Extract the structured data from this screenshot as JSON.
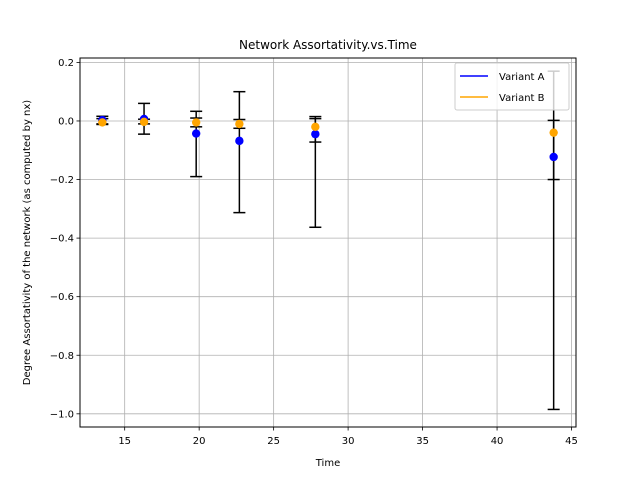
{
  "chart_data": {
    "type": "scatter",
    "title": "Network Assortativity.vs.Time",
    "xlabel": "Time",
    "ylabel": "Degree Assortativity of the network (as computed by nx)",
    "xlim": [
      12.0,
      45.3
    ],
    "ylim": [
      -1.045,
      0.215
    ],
    "xticks": [
      15,
      20,
      25,
      30,
      35,
      40,
      45
    ],
    "yticks": [
      -1.0,
      -0.8,
      -0.6,
      -0.4,
      -0.2,
      0.0,
      0.2
    ],
    "ytick_labels": [
      "−1.0",
      "−0.8",
      "−0.6",
      "−0.4",
      "−0.2",
      "0.0",
      "0.2"
    ],
    "grid": true,
    "legend_position": "top-right",
    "series": [
      {
        "name": "Variant A",
        "color": "#0000ff",
        "points": [
          {
            "x": 13.5,
            "y": 0.003,
            "ylow": -0.01,
            "yhigh": 0.016
          },
          {
            "x": 16.3,
            "y": 0.007,
            "ylow": -0.045,
            "yhigh": 0.06
          },
          {
            "x": 19.8,
            "y": -0.043,
            "ylow": -0.19,
            "yhigh": 0.033
          },
          {
            "x": 22.7,
            "y": -0.068,
            "ylow": -0.313,
            "yhigh": 0.1
          },
          {
            "x": 27.8,
            "y": -0.045,
            "ylow": -0.363,
            "yhigh": 0.015
          },
          {
            "x": 43.8,
            "y": -0.123,
            "ylow": -0.985,
            "yhigh": 0.002
          }
        ]
      },
      {
        "name": "Variant B",
        "color": "#ffa500",
        "points": [
          {
            "x": 13.5,
            "y": -0.005,
            "ylow": -0.012,
            "yhigh": 0.008
          },
          {
            "x": 16.3,
            "y": -0.003,
            "ylow": -0.01,
            "yhigh": 0.006
          },
          {
            "x": 19.8,
            "y": -0.005,
            "ylow": -0.02,
            "yhigh": 0.01
          },
          {
            "x": 22.7,
            "y": -0.01,
            "ylow": -0.025,
            "yhigh": 0.005
          },
          {
            "x": 27.8,
            "y": -0.02,
            "ylow": -0.072,
            "yhigh": 0.008
          },
          {
            "x": 43.8,
            "y": -0.04,
            "ylow": -0.2,
            "yhigh": 0.17
          }
        ]
      }
    ]
  }
}
